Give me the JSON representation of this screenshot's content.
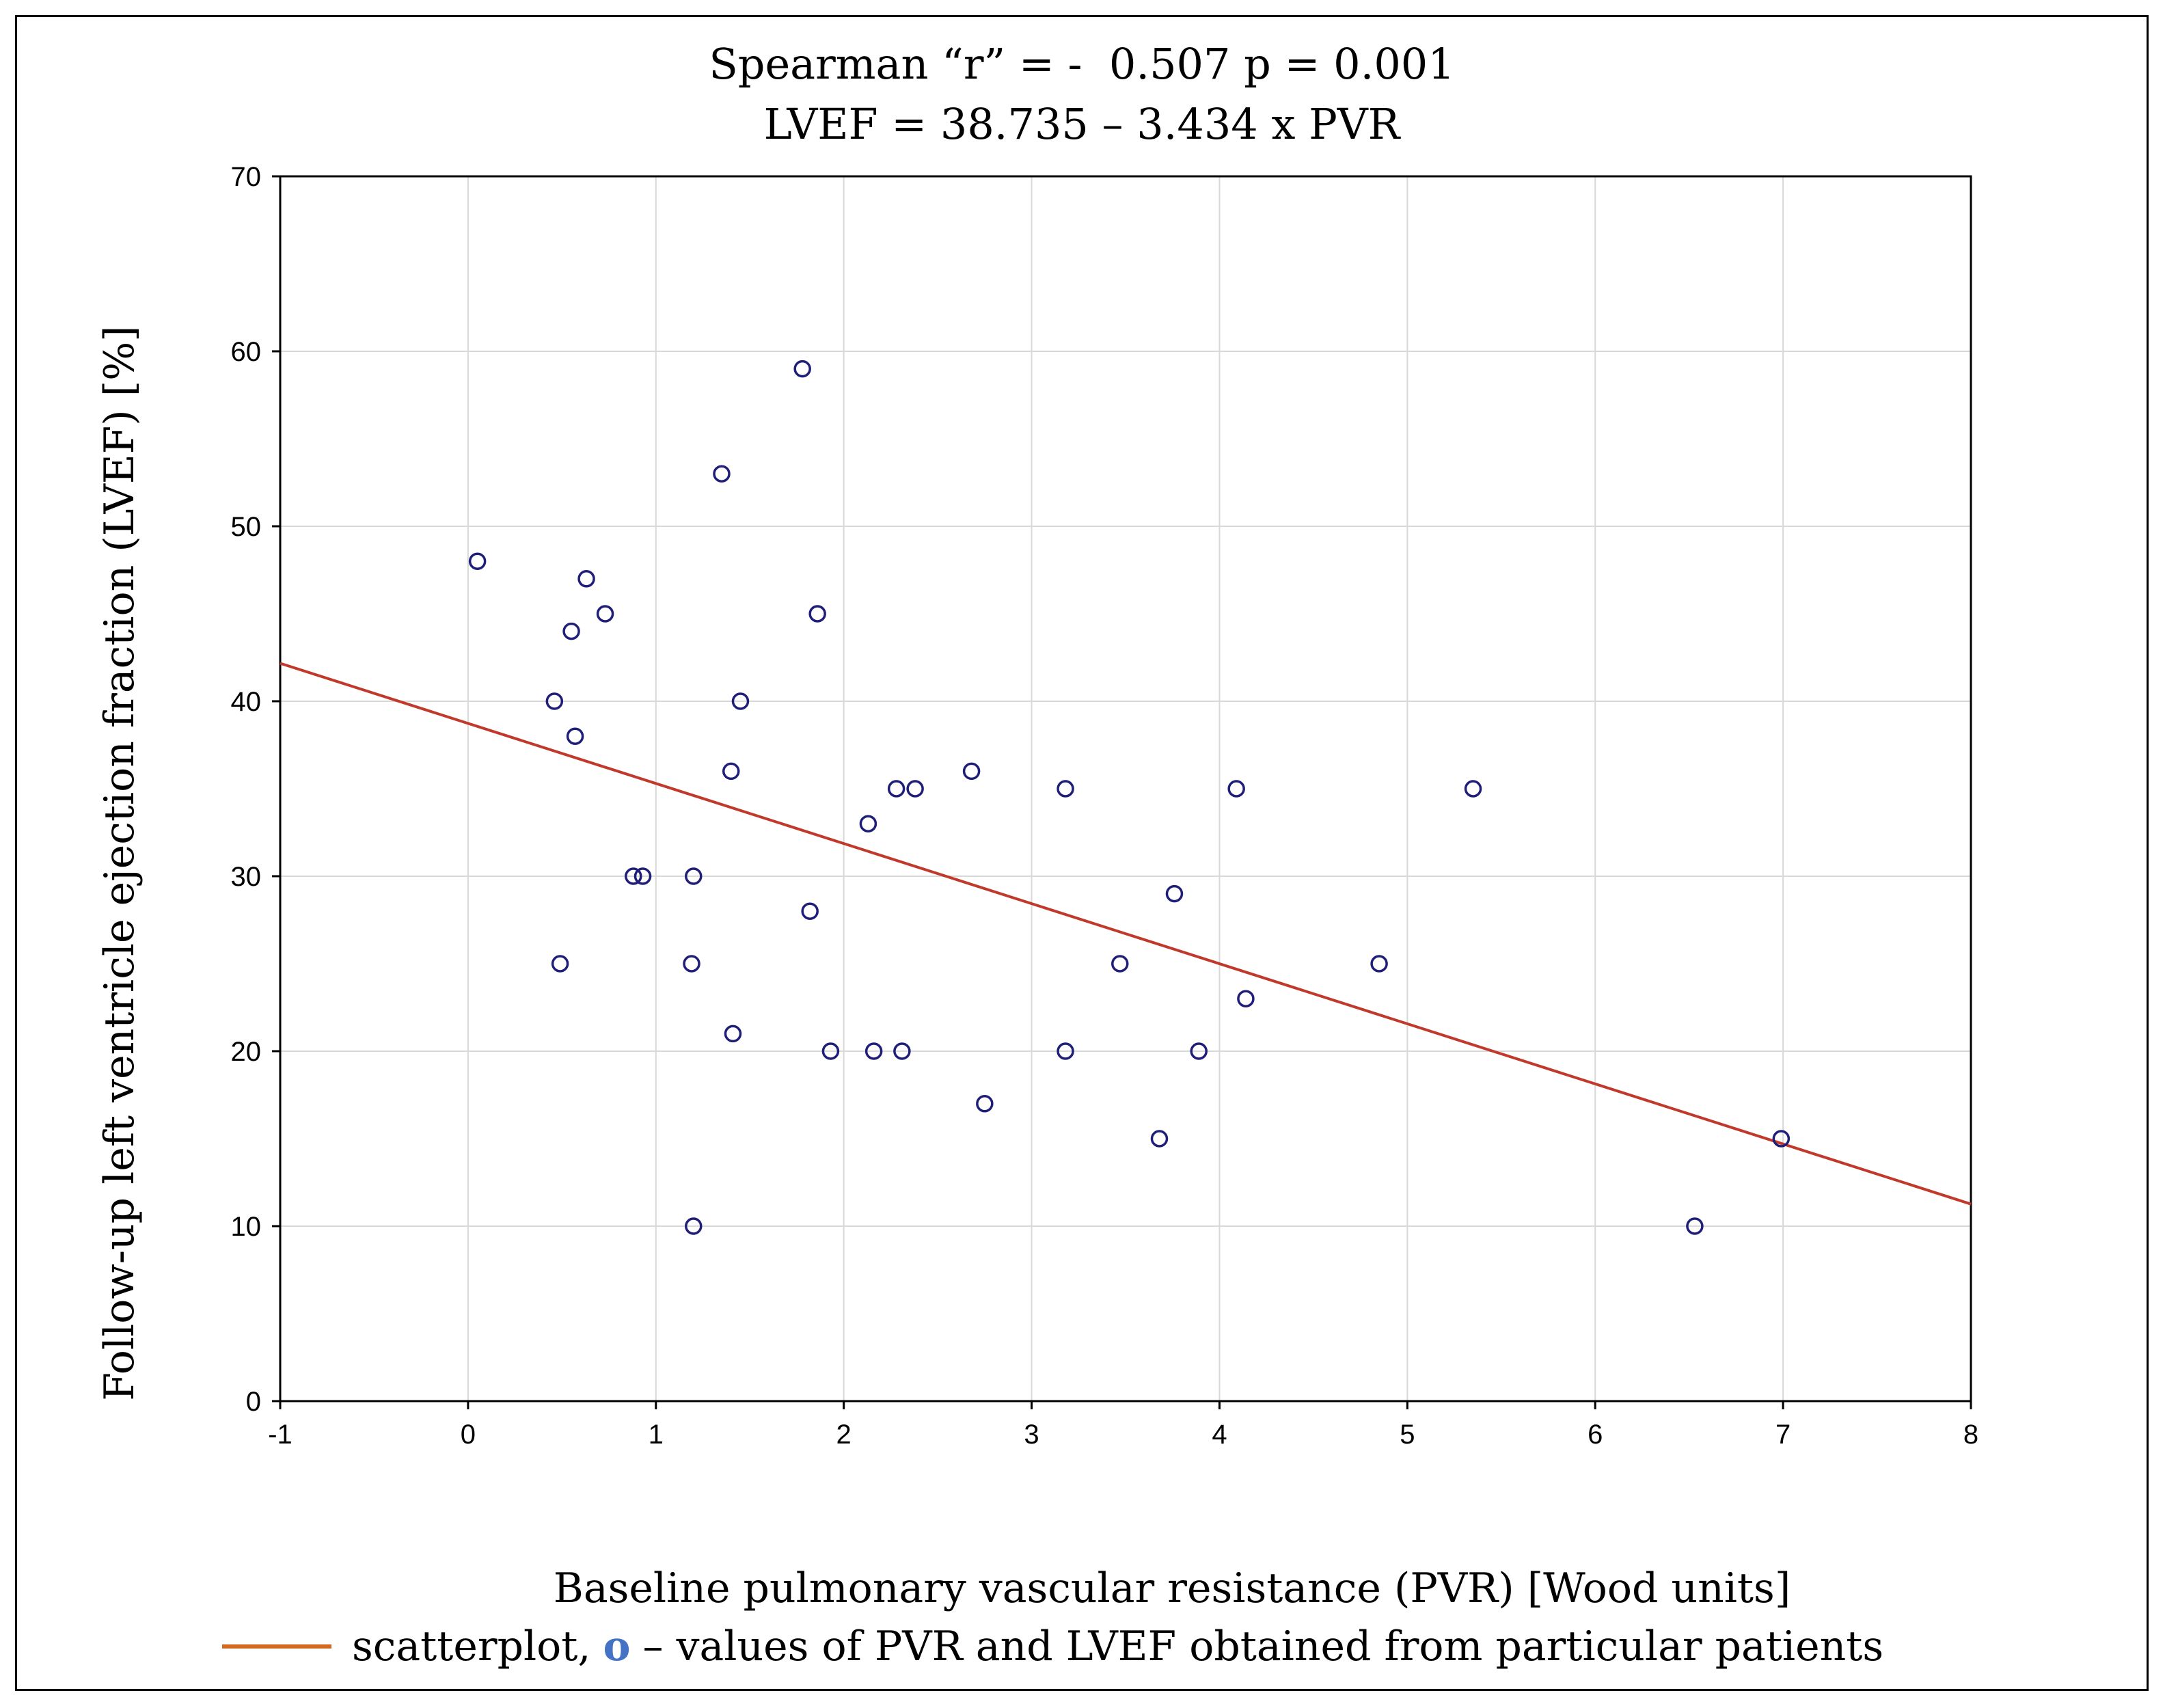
{
  "chart_data": {
    "type": "scatter",
    "title": "Spearman “r” = -  0.507 p = 0.001",
    "subtitle": "LVEF = 38.735 – 3.434 x PVR",
    "xlabel": "Baseline pulmonary vascular resistance (PVR) [Wood units]",
    "ylabel": "Follow-up left ventricle ejection fraction (LVEF) [%]",
    "xlim": [
      -1,
      8
    ],
    "ylim": [
      0,
      70
    ],
    "xticks": [
      "-1",
      "0",
      "1",
      "2",
      "3",
      "4",
      "5",
      "6",
      "7",
      "8"
    ],
    "yticks": [
      "0",
      "10",
      "20",
      "30",
      "40",
      "50",
      "60",
      "70"
    ],
    "xtick_values": [
      -1,
      0,
      1,
      2,
      3,
      4,
      5,
      6,
      7,
      8
    ],
    "ytick_values": [
      0,
      10,
      20,
      30,
      40,
      50,
      60,
      70
    ],
    "grid": true,
    "regression": {
      "intercept": 38.735,
      "slope": -3.434
    },
    "series": [
      {
        "name": "patients",
        "points": [
          [
            0.05,
            48
          ],
          [
            1.78,
            59
          ],
          [
            1.35,
            53
          ],
          [
            0.63,
            47
          ],
          [
            0.73,
            45
          ],
          [
            0.55,
            44
          ],
          [
            1.86,
            45
          ],
          [
            0.46,
            40
          ],
          [
            1.45,
            40
          ],
          [
            0.57,
            38
          ],
          [
            1.4,
            36
          ],
          [
            2.68,
            36
          ],
          [
            2.28,
            35
          ],
          [
            2.38,
            35
          ],
          [
            3.18,
            35
          ],
          [
            4.09,
            35
          ],
          [
            5.35,
            35
          ],
          [
            2.13,
            33
          ],
          [
            0.88,
            30
          ],
          [
            0.93,
            30
          ],
          [
            1.2,
            30
          ],
          [
            3.76,
            29
          ],
          [
            1.82,
            28
          ],
          [
            0.49,
            25
          ],
          [
            1.19,
            25
          ],
          [
            3.47,
            25
          ],
          [
            4.85,
            25
          ],
          [
            4.14,
            23
          ],
          [
            1.41,
            21
          ],
          [
            1.93,
            20
          ],
          [
            2.16,
            20
          ],
          [
            2.31,
            20
          ],
          [
            3.18,
            20
          ],
          [
            3.89,
            20
          ],
          [
            2.75,
            17
          ],
          [
            3.68,
            15
          ],
          [
            6.99,
            15
          ],
          [
            1.2,
            10
          ],
          [
            6.53,
            10
          ]
        ]
      }
    ]
  },
  "colors": {
    "marker": "#1f1f7a",
    "regression_line": "#c0392b",
    "legend_line": "#d2691e",
    "legend_marker": "#4472c4",
    "grid": "#d8d8d8"
  },
  "legend": {
    "line_text": "scatterplot,",
    "marker_text": "o",
    "marker_desc": "– values of PVR and LVEF obtained from particular patients"
  }
}
